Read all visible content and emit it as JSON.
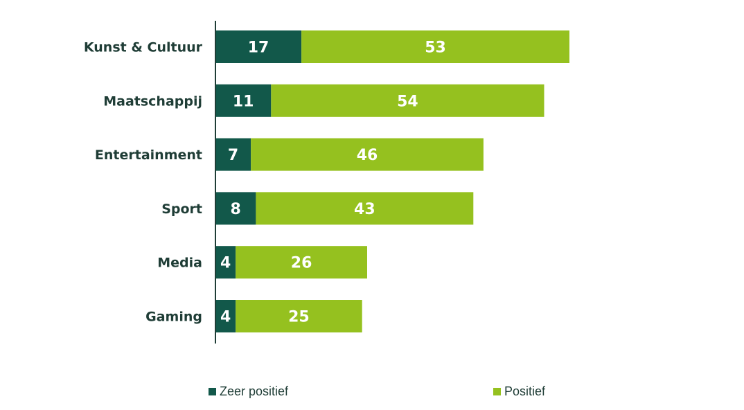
{
  "chart_data": {
    "type": "bar",
    "orientation": "horizontal",
    "stacked": true,
    "title": "",
    "xlabel": "",
    "ylabel": "",
    "categories": [
      "Kunst & Cultuur",
      "Maatschappij",
      "Entertainment",
      "Sport",
      "Media",
      "Gaming"
    ],
    "series": [
      {
        "name": "Zeer positief",
        "values": [
          17,
          11,
          7,
          8,
          4,
          4
        ],
        "color": "#12584a"
      },
      {
        "name": "Positief",
        "values": [
          53,
          54,
          46,
          43,
          26,
          25
        ],
        "color": "#95c11f"
      }
    ],
    "xlim": [
      0,
      100
    ],
    "grid": false,
    "legend": "bottom"
  }
}
